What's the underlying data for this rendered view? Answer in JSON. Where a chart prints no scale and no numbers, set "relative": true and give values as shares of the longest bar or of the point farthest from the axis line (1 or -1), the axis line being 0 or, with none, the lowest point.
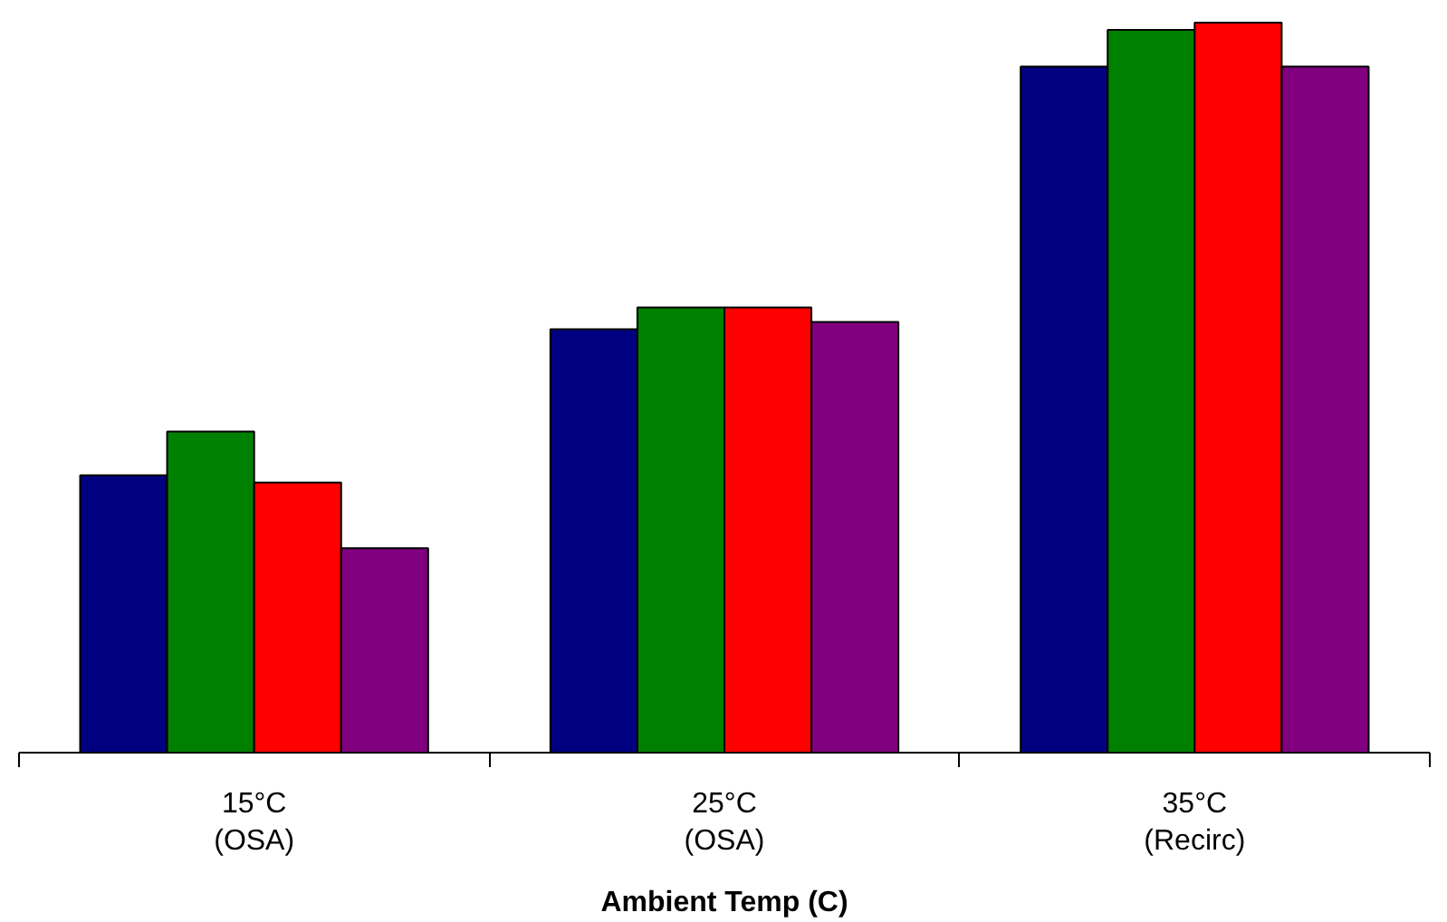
{
  "chart_data": {
    "type": "bar",
    "xlabel": "Ambient Temp (C)",
    "relative": true,
    "categories": [
      "15°C\n(OSA)",
      "25°C\n(OSA)",
      "35°C\n(Recirc)"
    ],
    "series": [
      {
        "color": "#000080",
        "values": [
          0.38,
          0.58,
          0.94
        ]
      },
      {
        "color": "#008000",
        "values": [
          0.44,
          0.61,
          0.99
        ]
      },
      {
        "color": "#ff0000",
        "values": [
          0.37,
          0.61,
          1
        ]
      },
      {
        "color": "#800080",
        "values": [
          0.28,
          0.59,
          0.94
        ]
      }
    ],
    "grid": false
  }
}
